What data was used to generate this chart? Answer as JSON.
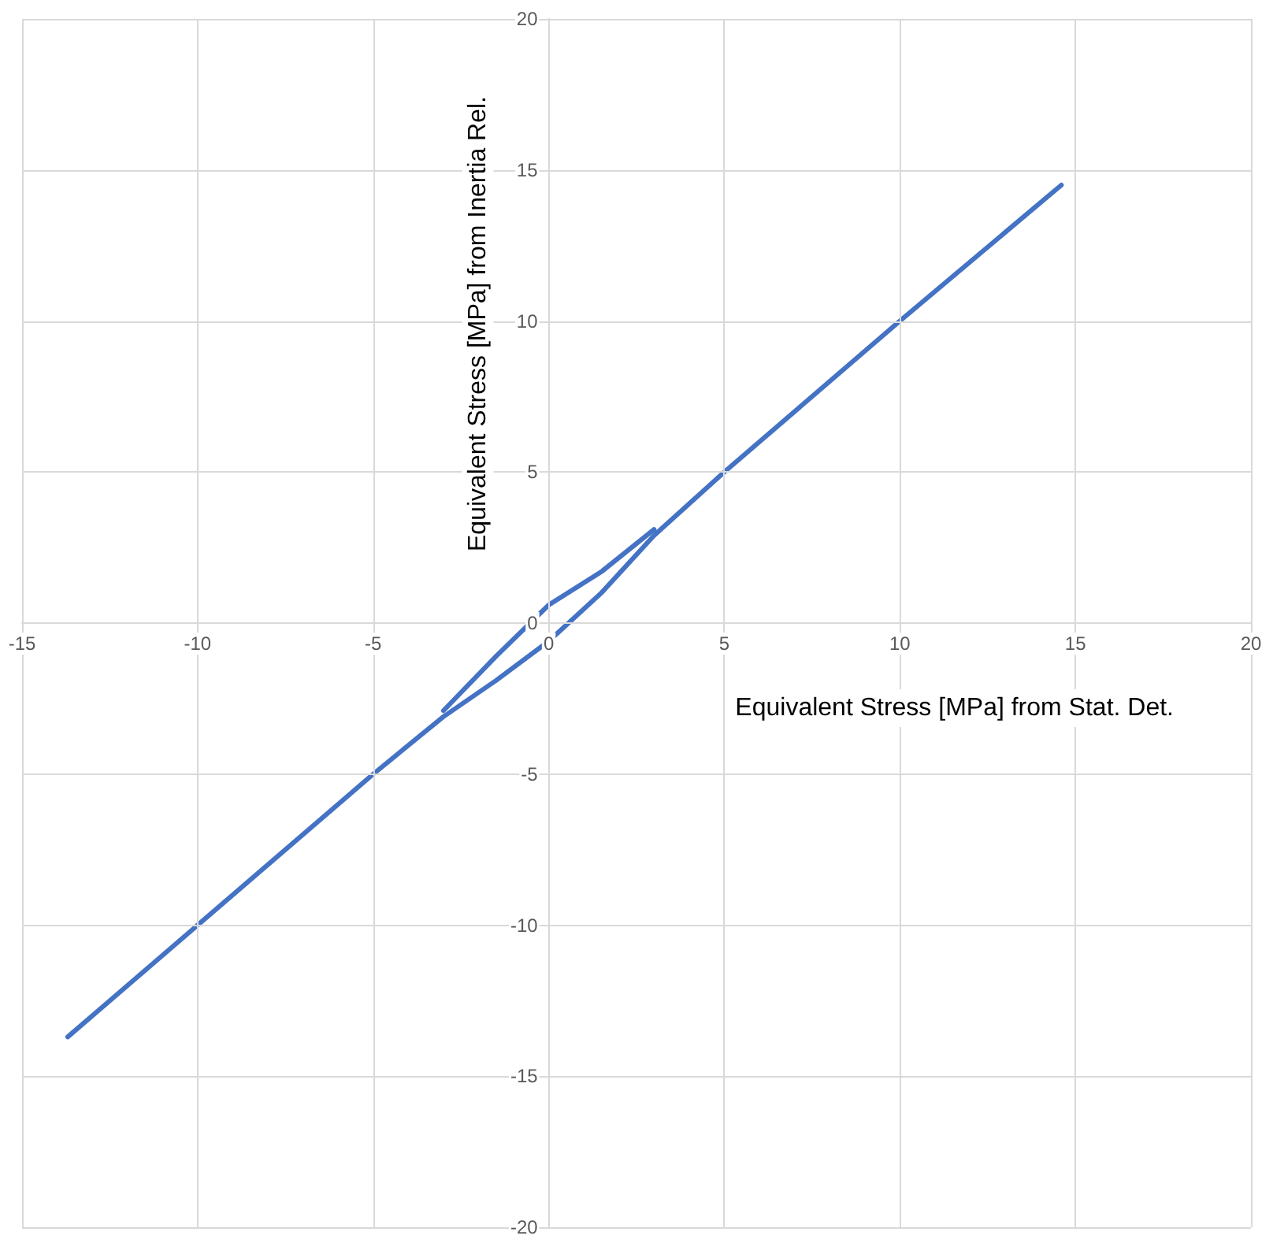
{
  "chart_data": {
    "type": "line",
    "xlabel": "Equivalent Stress [MPa] from Stat. Det.",
    "ylabel": "Equivalent Stress [MPa] from Inertia Rel.",
    "series": [
      {
        "color": "#4472c4",
        "x": [
          -13.7,
          -10,
          -5,
          -3,
          -1.5,
          0,
          1.5,
          3,
          5,
          10,
          14.6
        ],
        "values": [
          -13.7,
          -10,
          -5,
          -3.1,
          -1.9,
          -0.6,
          1.0,
          2.9,
          5,
          10,
          14.5
        ]
      },
      {
        "color": "#4472c4",
        "x": [
          -3,
          -1.5,
          0,
          1.5,
          3
        ],
        "values": [
          -2.9,
          -1.1,
          0.6,
          1.7,
          3.1
        ]
      }
    ],
    "xlim": [
      -15,
      20
    ],
    "xticks": [
      -15,
      -10,
      -5,
      0,
      5,
      10,
      15,
      20
    ],
    "ylim": [
      -20,
      20
    ],
    "yticks": [
      -20,
      -15,
      -10,
      -5,
      0,
      5,
      10,
      15,
      20
    ],
    "grid": true,
    "marker": "none",
    "line_style": "solid"
  }
}
